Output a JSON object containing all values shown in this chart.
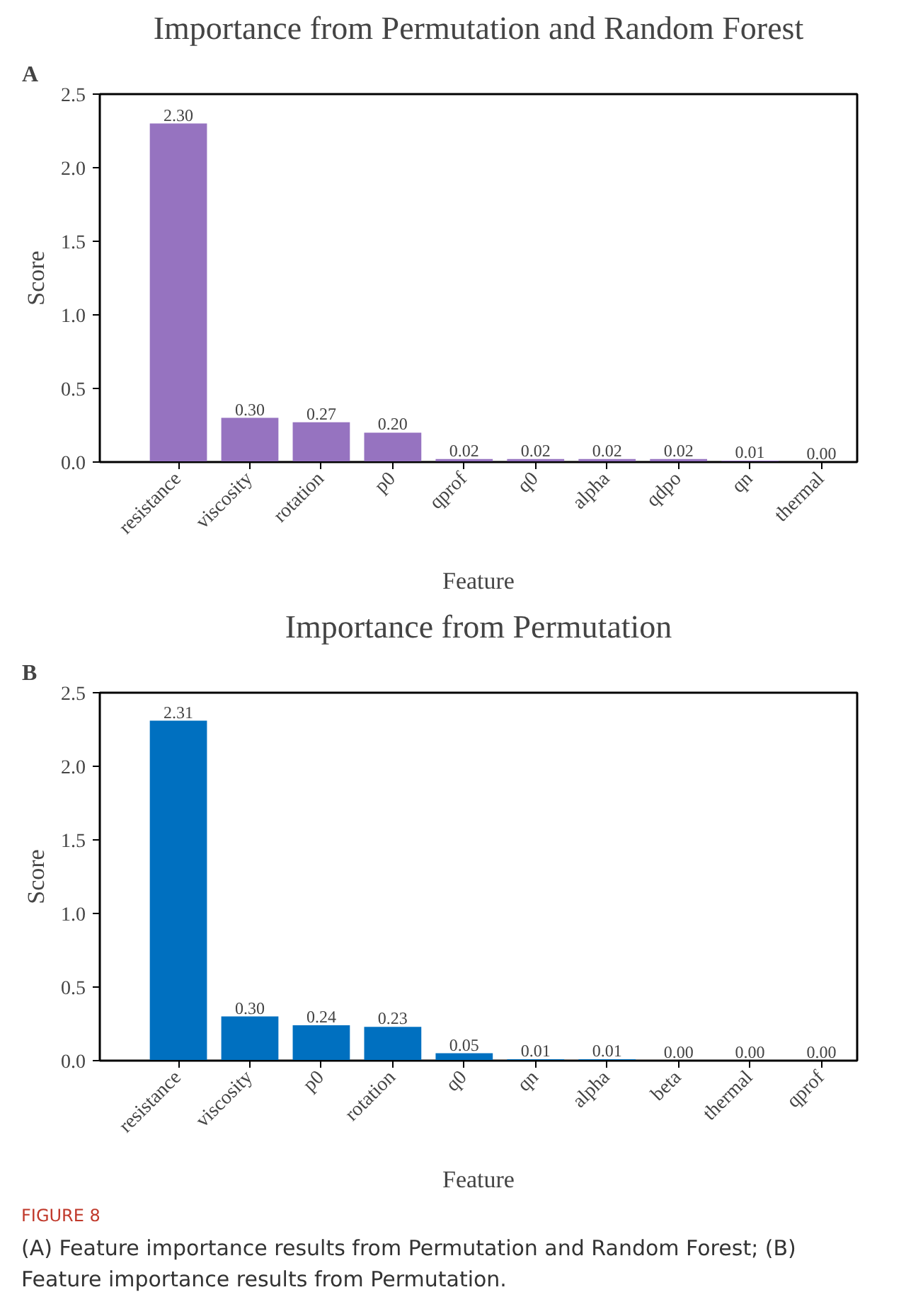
{
  "chart_data": [
    {
      "type": "bar",
      "title": "Importance from Permutation and Random Forest",
      "xlabel": "Feature",
      "ylabel": "Score",
      "annotations": [
        "A"
      ],
      "categories": [
        "resistance",
        "viscosity",
        "rotation",
        "p0",
        "qprof",
        "q0",
        "alpha",
        "qdpo",
        "qn",
        "thermal"
      ],
      "values": [
        2.3,
        0.3,
        0.27,
        0.2,
        0.02,
        0.02,
        0.02,
        0.02,
        0.01,
        0.0
      ],
      "color": "#9673c0",
      "ylim": [
        0,
        2.5
      ],
      "yticks": [
        {
          "value": 0,
          "label": "0.0"
        },
        {
          "value": 0.5,
          "label": "0.5"
        },
        {
          "value": 1.0,
          "label": "1.0"
        },
        {
          "value": 1.5,
          "label": "1.5"
        },
        {
          "value": 2.0,
          "label": "2.0"
        },
        {
          "value": 2.5,
          "label": "2.5"
        }
      ],
      "data_labels": true,
      "value_labels": [
        "2.30",
        "0.30",
        "0.27",
        "0.20",
        "0.02",
        "0.02",
        "0.02",
        "0.02",
        "0.01",
        "0.00"
      ],
      "grid": false
    },
    {
      "type": "bar",
      "title": "Importance from Permutation",
      "xlabel": "Feature",
      "ylabel": "Score",
      "annotations": [
        "B",
        "FIGURE 8",
        "(A) Feature importance results from Permutation and Random Forest; (B) Feature importance results from Permutation."
      ],
      "categories": [
        "resistance",
        "viscosity",
        "p0",
        "rotation",
        "q0",
        "qn",
        "alpha",
        "beta",
        "thermal",
        "qprof"
      ],
      "values": [
        2.31,
        0.3,
        0.24,
        0.23,
        0.05,
        0.01,
        0.01,
        0.0,
        0.0,
        0.0
      ],
      "color": "#0070c0",
      "ylim": [
        0,
        2.5
      ],
      "yticks": [
        {
          "value": 0,
          "label": "0.0"
        },
        {
          "value": 0.5,
          "label": "0.5"
        },
        {
          "value": 1.0,
          "label": "1.0"
        },
        {
          "value": 1.5,
          "label": "1.5"
        },
        {
          "value": 2.0,
          "label": "2.0"
        },
        {
          "value": 2.5,
          "label": "2.5"
        }
      ],
      "data_labels": true,
      "value_labels": [
        "2.31",
        "0.30",
        "0.24",
        "0.23",
        "0.05",
        "0.01",
        "0.01",
        "0.00",
        "0.00",
        "0.00"
      ],
      "grid": false
    }
  ]
}
